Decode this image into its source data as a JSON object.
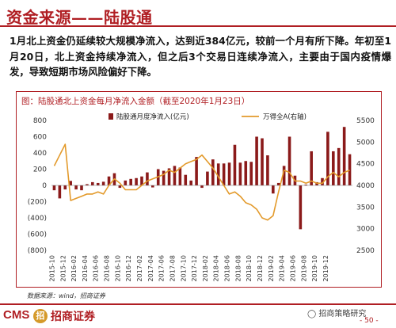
{
  "header": {
    "title": "资金来源——陆股通"
  },
  "summary": "1月北上资金仍延续较大规模净流入，达到近384亿元，较前一个月有所下降。年初至1月20日，北上资金持续净流入，但之后3个交易日连续净流入，主要由于国内疫情爆发，导致短期市场风险偏好下降。",
  "chart_title": "图：陆股通北上资金每月净流入金额（截至2020年1月23日）",
  "source": "数据来源：wind，招商证券",
  "footer": {
    "logo_en": "CMS",
    "logo_mark": "招",
    "logo_cn": "招商证券",
    "wechat": "招商策略研究",
    "page": "- 50 -"
  },
  "colors": {
    "brand": "#b01e23",
    "bar": "#8b1a1a",
    "line": "#e39a2b"
  },
  "chart_data": {
    "type": "bar",
    "legend_position": "top",
    "grid": false,
    "x_tick_labels": [
      "2015-10",
      "2015-12",
      "2016-02",
      "2016-04",
      "2016-06",
      "2016-08",
      "2016-10",
      "2016-12",
      "2017-02",
      "2017-04",
      "2017-06",
      "2017-08",
      "2017-10",
      "2017-12",
      "2018-02",
      "2018-04",
      "2018-06",
      "2018-08",
      "2018-10",
      "2018-12",
      "2019-02",
      "2019-04",
      "2019-06",
      "2019-08",
      "2019-10",
      "2019-12"
    ],
    "y_left": {
      "ticks": [
        800,
        600,
        400,
        200,
        0,
        -200,
        -400,
        -600,
        -800
      ],
      "ylim": [
        -800,
        800
      ]
    },
    "y_right": {
      "ticks": [
        5500,
        5000,
        4500,
        4000,
        3500,
        3000,
        2500
      ],
      "ylim": [
        2500,
        5500
      ]
    },
    "series": [
      {
        "name": "陆股通月度净流入(亿元)",
        "type": "bar",
        "axis": "left",
        "values": [
          -60,
          -160,
          -50,
          55,
          -50,
          -60,
          15,
          40,
          30,
          45,
          110,
          150,
          -30,
          60,
          80,
          90,
          110,
          160,
          -25,
          200,
          180,
          210,
          240,
          220,
          130,
          60,
          350,
          -30,
          170,
          320,
          270,
          270,
          280,
          500,
          280,
          300,
          290,
          600,
          580,
          370,
          -100,
          30,
          240,
          600,
          120,
          -540,
          10,
          420,
          40,
          90,
          660,
          420,
          460,
          720,
          384
        ]
      },
      {
        "name": "万得全A(右轴)",
        "type": "line",
        "axis": "right",
        "values": [
          4450,
          4700,
          4950,
          3650,
          3700,
          3750,
          3800,
          3800,
          3850,
          3800,
          4000,
          4150,
          4050,
          3900,
          3900,
          3900,
          4000,
          4100,
          4150,
          4200,
          4250,
          4350,
          4300,
          4400,
          4500,
          4550,
          4600,
          4700,
          4550,
          4400,
          4200,
          4000,
          3800,
          3850,
          3750,
          3600,
          3550,
          3450,
          3250,
          3200,
          3300,
          3850,
          4350,
          4300,
          4100,
          4100,
          4050,
          4100,
          4050,
          4050,
          4200,
          4300,
          4200,
          4300,
          4350
        ]
      }
    ]
  }
}
